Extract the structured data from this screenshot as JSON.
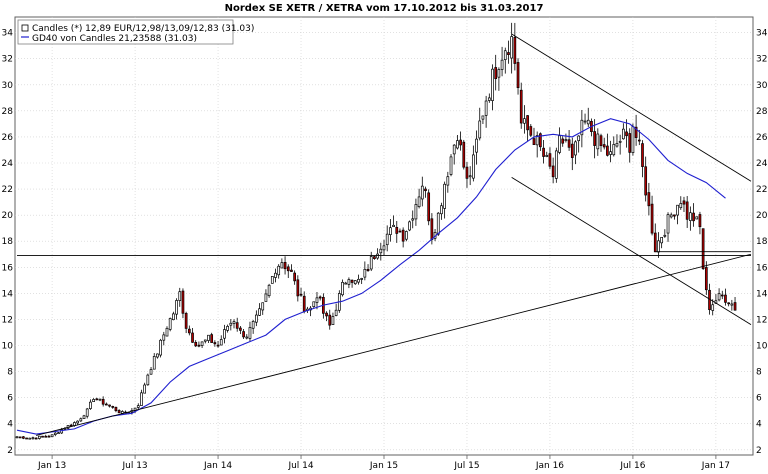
{
  "chart_data": {
    "type": "candlestick",
    "title": "Nordex SE XETR / XETRA vom 17.10.2012 bis 31.03.2017",
    "legend": {
      "placement": "top-left",
      "entries": [
        {
          "label": "Candles (*) 12,89 EUR/12,98/13,09/12,83 (31.03)",
          "color": "#000000"
        },
        {
          "label": "GD40 von Candles 21,23588 (31.03)",
          "color": "#2020d0"
        }
      ]
    },
    "ylim": [
      1.6,
      35.2
    ],
    "y_ticks": [
      2,
      4,
      6,
      8,
      10,
      12,
      14,
      16,
      18,
      20,
      22,
      24,
      26,
      28,
      30,
      32,
      34
    ],
    "x_ticks": [
      {
        "label": "Jan 13",
        "week": 11
      },
      {
        "label": "Jul 13",
        "week": 37
      },
      {
        "label": "Jan 14",
        "week": 63
      },
      {
        "label": "Jul 14",
        "week": 89
      },
      {
        "label": "Jan 15",
        "week": 115
      },
      {
        "label": "Jul 15",
        "week": 141
      },
      {
        "label": "Jan 16",
        "week": 167
      },
      {
        "label": "Jul 16",
        "week": 193
      },
      {
        "label": "Jan 17",
        "week": 219
      }
    ],
    "weeks_total": 230,
    "price_anchors": [
      [
        0,
        3.0
      ],
      [
        4,
        2.9
      ],
      [
        8,
        3.0
      ],
      [
        11,
        3.1
      ],
      [
        15,
        3.7
      ],
      [
        19,
        4.2
      ],
      [
        22,
        5.0
      ],
      [
        24,
        6.0
      ],
      [
        27,
        5.6
      ],
      [
        30,
        5.2
      ],
      [
        33,
        4.8
      ],
      [
        36,
        5.0
      ],
      [
        38,
        5.5
      ],
      [
        41,
        7.8
      ],
      [
        44,
        9.5
      ],
      [
        47,
        11.5
      ],
      [
        49,
        12.5
      ],
      [
        51,
        14.0
      ],
      [
        53,
        11.5
      ],
      [
        55,
        10.5
      ],
      [
        57,
        10.0
      ],
      [
        60,
        10.5
      ],
      [
        63,
        10.0
      ],
      [
        66,
        11.5
      ],
      [
        68,
        12.0
      ],
      [
        70,
        11.0
      ],
      [
        72,
        10.8
      ],
      [
        75,
        12.0
      ],
      [
        77,
        13.0
      ],
      [
        79,
        14.5
      ],
      [
        81,
        16.0
      ],
      [
        83,
        16.5
      ],
      [
        86,
        15.5
      ],
      [
        88,
        14.0
      ],
      [
        90,
        13.0
      ],
      [
        92,
        12.8
      ],
      [
        94,
        14.0
      ],
      [
        96,
        12.5
      ],
      [
        98,
        11.5
      ],
      [
        100,
        13.0
      ],
      [
        102,
        14.5
      ],
      [
        104,
        15.5
      ],
      [
        106,
        14.8
      ],
      [
        108,
        15.0
      ],
      [
        110,
        16.0
      ],
      [
        113,
        17.5
      ],
      [
        116,
        18.5
      ],
      [
        119,
        19.0
      ],
      [
        121,
        18.5
      ],
      [
        123,
        19.5
      ],
      [
        125,
        21.0
      ],
      [
        127,
        22.5
      ],
      [
        128,
        21.5
      ],
      [
        130,
        18.5
      ],
      [
        132,
        20.0
      ],
      [
        134,
        22.5
      ],
      [
        136,
        24.5
      ],
      [
        138,
        26.5
      ],
      [
        139,
        25.0
      ],
      [
        141,
        22.5
      ],
      [
        143,
        24.0
      ],
      [
        145,
        27.0
      ],
      [
        147,
        29.0
      ],
      [
        149,
        30.5
      ],
      [
        151,
        32.0
      ],
      [
        153,
        33.0
      ],
      [
        155,
        33.5
      ],
      [
        157,
        30.0
      ],
      [
        158,
        27.0
      ],
      [
        160,
        26.5
      ],
      [
        162,
        26.0
      ],
      [
        164,
        25.0
      ],
      [
        166,
        24.0
      ],
      [
        168,
        23.0
      ],
      [
        170,
        25.5
      ],
      [
        172,
        25.8
      ],
      [
        174,
        24.0
      ],
      [
        176,
        26.0
      ],
      [
        178,
        27.0
      ],
      [
        180,
        26.5
      ],
      [
        182,
        25.5
      ],
      [
        184,
        25.0
      ],
      [
        186,
        24.5
      ],
      [
        188,
        25.5
      ],
      [
        190,
        26.0
      ],
      [
        192,
        25.5
      ],
      [
        193,
        27.0
      ],
      [
        195,
        25.0
      ],
      [
        197,
        22.0
      ],
      [
        199,
        19.0
      ],
      [
        200,
        17.5
      ],
      [
        202,
        18.5
      ],
      [
        204,
        19.5
      ],
      [
        206,
        20.5
      ],
      [
        208,
        21.3
      ],
      [
        210,
        20.0
      ],
      [
        212,
        19.8
      ],
      [
        214,
        19.0
      ],
      [
        215,
        16.0
      ],
      [
        216,
        14.0
      ],
      [
        217,
        13.0
      ],
      [
        219,
        13.5
      ],
      [
        221,
        13.8
      ],
      [
        223,
        13.5
      ],
      [
        225,
        12.9
      ]
    ],
    "gd40_points": [
      [
        0,
        3.5
      ],
      [
        6,
        3.2
      ],
      [
        12,
        3.4
      ],
      [
        18,
        3.6
      ],
      [
        24,
        4.2
      ],
      [
        30,
        4.6
      ],
      [
        36,
        4.8
      ],
      [
        42,
        5.6
      ],
      [
        48,
        7.2
      ],
      [
        54,
        8.4
      ],
      [
        60,
        9.0
      ],
      [
        66,
        9.6
      ],
      [
        72,
        10.2
      ],
      [
        78,
        10.8
      ],
      [
        84,
        12.0
      ],
      [
        90,
        12.6
      ],
      [
        96,
        13.1
      ],
      [
        102,
        13.4
      ],
      [
        108,
        14.0
      ],
      [
        114,
        15.0
      ],
      [
        120,
        16.2
      ],
      [
        126,
        17.3
      ],
      [
        132,
        18.6
      ],
      [
        138,
        19.8
      ],
      [
        144,
        21.4
      ],
      [
        150,
        23.5
      ],
      [
        156,
        25.0
      ],
      [
        162,
        26.0
      ],
      [
        168,
        26.2
      ],
      [
        174,
        26.0
      ],
      [
        180,
        26.8
      ],
      [
        186,
        27.4
      ],
      [
        192,
        27.0
      ],
      [
        198,
        25.8
      ],
      [
        204,
        24.2
      ],
      [
        210,
        23.2
      ],
      [
        216,
        22.5
      ],
      [
        222,
        21.3
      ]
    ],
    "lines": [
      {
        "x1": 6,
        "y1": 3.1,
        "x2": 230,
        "y2": 17.0
      },
      {
        "x1": 0,
        "y1": 16.9,
        "x2": 230,
        "y2": 16.9
      },
      {
        "x1": 155,
        "y1": 33.9,
        "x2": 230,
        "y2": 22.6
      },
      {
        "x1": 155,
        "y1": 22.9,
        "x2": 230,
        "y2": 11.6
      },
      {
        "x1": 200,
        "y1": 17.2,
        "x2": 230,
        "y2": 17.2
      }
    ]
  }
}
